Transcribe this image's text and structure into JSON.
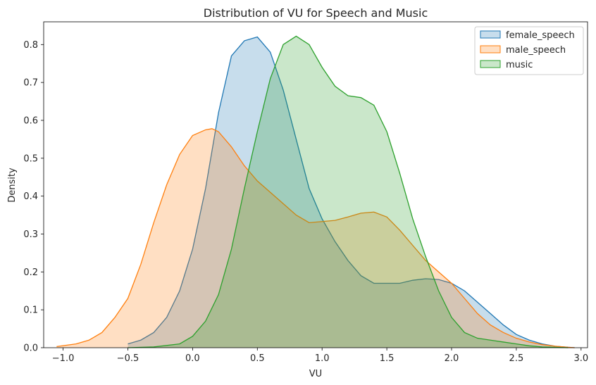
{
  "chart_data": {
    "type": "area",
    "title": "Distribution of VU for Speech and Music",
    "xlabel": "VU",
    "ylabel": "Density",
    "xlim": [
      -1.15,
      3.05
    ],
    "ylim": [
      0,
      0.86
    ],
    "xticks": [
      -1.0,
      -0.5,
      0.0,
      0.5,
      1.0,
      1.5,
      2.0,
      2.5,
      3.0
    ],
    "xtick_labels": [
      "−1.0",
      "−0.5",
      "0.0",
      "0.5",
      "1.0",
      "1.5",
      "2.0",
      "2.5",
      "3.0"
    ],
    "yticks": [
      0.0,
      0.1,
      0.2,
      0.3,
      0.4,
      0.5,
      0.6,
      0.7,
      0.8
    ],
    "ytick_labels": [
      "0.0",
      "0.1",
      "0.2",
      "0.3",
      "0.4",
      "0.5",
      "0.6",
      "0.7",
      "0.8"
    ],
    "grid": false,
    "legend_position": "top-right",
    "series": [
      {
        "name": "female_speech",
        "color": "#1f77b4",
        "x": [
          -0.5,
          -0.4,
          -0.3,
          -0.2,
          -0.1,
          0.0,
          0.1,
          0.2,
          0.3,
          0.4,
          0.5,
          0.6,
          0.7,
          0.8,
          0.9,
          1.0,
          1.1,
          1.2,
          1.3,
          1.4,
          1.5,
          1.6,
          1.7,
          1.8,
          1.9,
          2.0,
          2.1,
          2.2,
          2.3,
          2.4,
          2.5,
          2.6,
          2.7,
          2.8,
          2.9,
          2.95
        ],
        "y": [
          0.01,
          0.02,
          0.04,
          0.08,
          0.15,
          0.26,
          0.42,
          0.62,
          0.77,
          0.81,
          0.82,
          0.78,
          0.68,
          0.55,
          0.42,
          0.34,
          0.28,
          0.23,
          0.19,
          0.17,
          0.17,
          0.17,
          0.178,
          0.182,
          0.18,
          0.17,
          0.15,
          0.12,
          0.09,
          0.06,
          0.035,
          0.02,
          0.01,
          0.004,
          0.001,
          0.0
        ]
      },
      {
        "name": "male_speech",
        "color": "#ff7f0e",
        "x": [
          -1.05,
          -0.9,
          -0.8,
          -0.7,
          -0.6,
          -0.5,
          -0.4,
          -0.3,
          -0.2,
          -0.1,
          0.0,
          0.1,
          0.15,
          0.2,
          0.3,
          0.4,
          0.5,
          0.6,
          0.7,
          0.8,
          0.9,
          1.0,
          1.1,
          1.2,
          1.3,
          1.4,
          1.5,
          1.6,
          1.7,
          1.8,
          1.9,
          2.0,
          2.1,
          2.2,
          2.3,
          2.4,
          2.5,
          2.6,
          2.7,
          2.8,
          2.9,
          2.95
        ],
        "y": [
          0.003,
          0.01,
          0.02,
          0.04,
          0.08,
          0.13,
          0.22,
          0.33,
          0.43,
          0.51,
          0.56,
          0.575,
          0.578,
          0.57,
          0.53,
          0.48,
          0.44,
          0.41,
          0.38,
          0.35,
          0.33,
          0.333,
          0.336,
          0.345,
          0.355,
          0.358,
          0.345,
          0.31,
          0.27,
          0.23,
          0.2,
          0.17,
          0.13,
          0.09,
          0.06,
          0.04,
          0.025,
          0.015,
          0.008,
          0.004,
          0.001,
          0.0
        ]
      },
      {
        "name": "music",
        "color": "#2ca02c",
        "x": [
          -0.5,
          -0.3,
          -0.1,
          0.0,
          0.1,
          0.2,
          0.3,
          0.4,
          0.5,
          0.6,
          0.7,
          0.8,
          0.9,
          1.0,
          1.1,
          1.2,
          1.3,
          1.4,
          1.5,
          1.6,
          1.7,
          1.8,
          1.9,
          2.0,
          2.1,
          2.2,
          2.3,
          2.4,
          2.5,
          2.6,
          2.7,
          2.8,
          2.9
        ],
        "y": [
          0.0,
          0.002,
          0.01,
          0.03,
          0.07,
          0.14,
          0.26,
          0.42,
          0.57,
          0.71,
          0.8,
          0.822,
          0.8,
          0.74,
          0.69,
          0.665,
          0.66,
          0.64,
          0.57,
          0.46,
          0.34,
          0.24,
          0.15,
          0.08,
          0.04,
          0.025,
          0.02,
          0.015,
          0.01,
          0.005,
          0.002,
          0.001,
          0.0
        ]
      }
    ]
  }
}
